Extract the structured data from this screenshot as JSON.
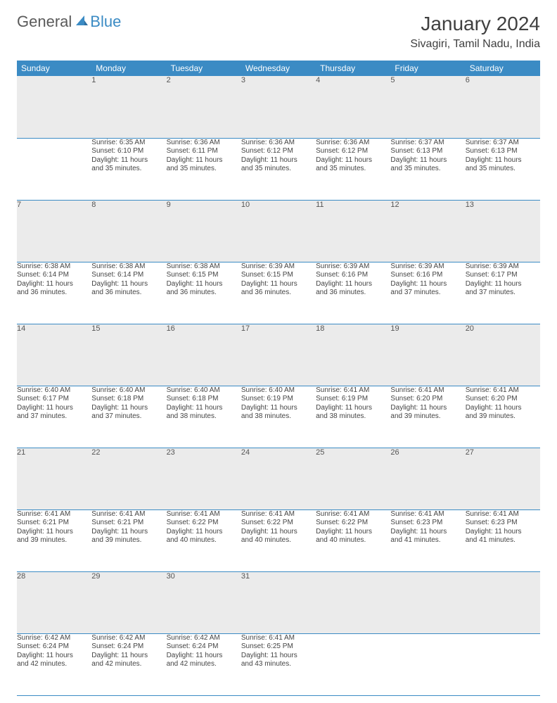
{
  "logo": {
    "text_general": "General",
    "text_blue": "Blue"
  },
  "title": "January 2024",
  "location": "Sivagiri, Tamil Nadu, India",
  "colors": {
    "header_bg": "#3b8bc4",
    "header_text": "#ffffff",
    "daynum_bg": "#ebebeb",
    "body_text": "#444444",
    "rule": "#3b8bc4",
    "page_bg": "#ffffff"
  },
  "typography": {
    "title_fontsize": 28,
    "location_fontsize": 16,
    "header_fontsize": 12,
    "daynum_fontsize": 11,
    "cell_fontsize": 10
  },
  "weekday_headers": [
    "Sunday",
    "Monday",
    "Tuesday",
    "Wednesday",
    "Thursday",
    "Friday",
    "Saturday"
  ],
  "weeks": [
    {
      "nums": [
        "",
        "1",
        "2",
        "3",
        "4",
        "5",
        "6"
      ],
      "cells": [
        null,
        {
          "sunrise": "Sunrise: 6:35 AM",
          "sunset": "Sunset: 6:10 PM",
          "day1": "Daylight: 11 hours",
          "day2": "and 35 minutes."
        },
        {
          "sunrise": "Sunrise: 6:36 AM",
          "sunset": "Sunset: 6:11 PM",
          "day1": "Daylight: 11 hours",
          "day2": "and 35 minutes."
        },
        {
          "sunrise": "Sunrise: 6:36 AM",
          "sunset": "Sunset: 6:12 PM",
          "day1": "Daylight: 11 hours",
          "day2": "and 35 minutes."
        },
        {
          "sunrise": "Sunrise: 6:36 AM",
          "sunset": "Sunset: 6:12 PM",
          "day1": "Daylight: 11 hours",
          "day2": "and 35 minutes."
        },
        {
          "sunrise": "Sunrise: 6:37 AM",
          "sunset": "Sunset: 6:13 PM",
          "day1": "Daylight: 11 hours",
          "day2": "and 35 minutes."
        },
        {
          "sunrise": "Sunrise: 6:37 AM",
          "sunset": "Sunset: 6:13 PM",
          "day1": "Daylight: 11 hours",
          "day2": "and 35 minutes."
        }
      ]
    },
    {
      "nums": [
        "7",
        "8",
        "9",
        "10",
        "11",
        "12",
        "13"
      ],
      "cells": [
        {
          "sunrise": "Sunrise: 6:38 AM",
          "sunset": "Sunset: 6:14 PM",
          "day1": "Daylight: 11 hours",
          "day2": "and 36 minutes."
        },
        {
          "sunrise": "Sunrise: 6:38 AM",
          "sunset": "Sunset: 6:14 PM",
          "day1": "Daylight: 11 hours",
          "day2": "and 36 minutes."
        },
        {
          "sunrise": "Sunrise: 6:38 AM",
          "sunset": "Sunset: 6:15 PM",
          "day1": "Daylight: 11 hours",
          "day2": "and 36 minutes."
        },
        {
          "sunrise": "Sunrise: 6:39 AM",
          "sunset": "Sunset: 6:15 PM",
          "day1": "Daylight: 11 hours",
          "day2": "and 36 minutes."
        },
        {
          "sunrise": "Sunrise: 6:39 AM",
          "sunset": "Sunset: 6:16 PM",
          "day1": "Daylight: 11 hours",
          "day2": "and 36 minutes."
        },
        {
          "sunrise": "Sunrise: 6:39 AM",
          "sunset": "Sunset: 6:16 PM",
          "day1": "Daylight: 11 hours",
          "day2": "and 37 minutes."
        },
        {
          "sunrise": "Sunrise: 6:39 AM",
          "sunset": "Sunset: 6:17 PM",
          "day1": "Daylight: 11 hours",
          "day2": "and 37 minutes."
        }
      ]
    },
    {
      "nums": [
        "14",
        "15",
        "16",
        "17",
        "18",
        "19",
        "20"
      ],
      "cells": [
        {
          "sunrise": "Sunrise: 6:40 AM",
          "sunset": "Sunset: 6:17 PM",
          "day1": "Daylight: 11 hours",
          "day2": "and 37 minutes."
        },
        {
          "sunrise": "Sunrise: 6:40 AM",
          "sunset": "Sunset: 6:18 PM",
          "day1": "Daylight: 11 hours",
          "day2": "and 37 minutes."
        },
        {
          "sunrise": "Sunrise: 6:40 AM",
          "sunset": "Sunset: 6:18 PM",
          "day1": "Daylight: 11 hours",
          "day2": "and 38 minutes."
        },
        {
          "sunrise": "Sunrise: 6:40 AM",
          "sunset": "Sunset: 6:19 PM",
          "day1": "Daylight: 11 hours",
          "day2": "and 38 minutes."
        },
        {
          "sunrise": "Sunrise: 6:41 AM",
          "sunset": "Sunset: 6:19 PM",
          "day1": "Daylight: 11 hours",
          "day2": "and 38 minutes."
        },
        {
          "sunrise": "Sunrise: 6:41 AM",
          "sunset": "Sunset: 6:20 PM",
          "day1": "Daylight: 11 hours",
          "day2": "and 39 minutes."
        },
        {
          "sunrise": "Sunrise: 6:41 AM",
          "sunset": "Sunset: 6:20 PM",
          "day1": "Daylight: 11 hours",
          "day2": "and 39 minutes."
        }
      ]
    },
    {
      "nums": [
        "21",
        "22",
        "23",
        "24",
        "25",
        "26",
        "27"
      ],
      "cells": [
        {
          "sunrise": "Sunrise: 6:41 AM",
          "sunset": "Sunset: 6:21 PM",
          "day1": "Daylight: 11 hours",
          "day2": "and 39 minutes."
        },
        {
          "sunrise": "Sunrise: 6:41 AM",
          "sunset": "Sunset: 6:21 PM",
          "day1": "Daylight: 11 hours",
          "day2": "and 39 minutes."
        },
        {
          "sunrise": "Sunrise: 6:41 AM",
          "sunset": "Sunset: 6:22 PM",
          "day1": "Daylight: 11 hours",
          "day2": "and 40 minutes."
        },
        {
          "sunrise": "Sunrise: 6:41 AM",
          "sunset": "Sunset: 6:22 PM",
          "day1": "Daylight: 11 hours",
          "day2": "and 40 minutes."
        },
        {
          "sunrise": "Sunrise: 6:41 AM",
          "sunset": "Sunset: 6:22 PM",
          "day1": "Daylight: 11 hours",
          "day2": "and 40 minutes."
        },
        {
          "sunrise": "Sunrise: 6:41 AM",
          "sunset": "Sunset: 6:23 PM",
          "day1": "Daylight: 11 hours",
          "day2": "and 41 minutes."
        },
        {
          "sunrise": "Sunrise: 6:41 AM",
          "sunset": "Sunset: 6:23 PM",
          "day1": "Daylight: 11 hours",
          "day2": "and 41 minutes."
        }
      ]
    },
    {
      "nums": [
        "28",
        "29",
        "30",
        "31",
        "",
        "",
        ""
      ],
      "cells": [
        {
          "sunrise": "Sunrise: 6:42 AM",
          "sunset": "Sunset: 6:24 PM",
          "day1": "Daylight: 11 hours",
          "day2": "and 42 minutes."
        },
        {
          "sunrise": "Sunrise: 6:42 AM",
          "sunset": "Sunset: 6:24 PM",
          "day1": "Daylight: 11 hours",
          "day2": "and 42 minutes."
        },
        {
          "sunrise": "Sunrise: 6:42 AM",
          "sunset": "Sunset: 6:24 PM",
          "day1": "Daylight: 11 hours",
          "day2": "and 42 minutes."
        },
        {
          "sunrise": "Sunrise: 6:41 AM",
          "sunset": "Sunset: 6:25 PM",
          "day1": "Daylight: 11 hours",
          "day2": "and 43 minutes."
        },
        null,
        null,
        null
      ]
    }
  ]
}
